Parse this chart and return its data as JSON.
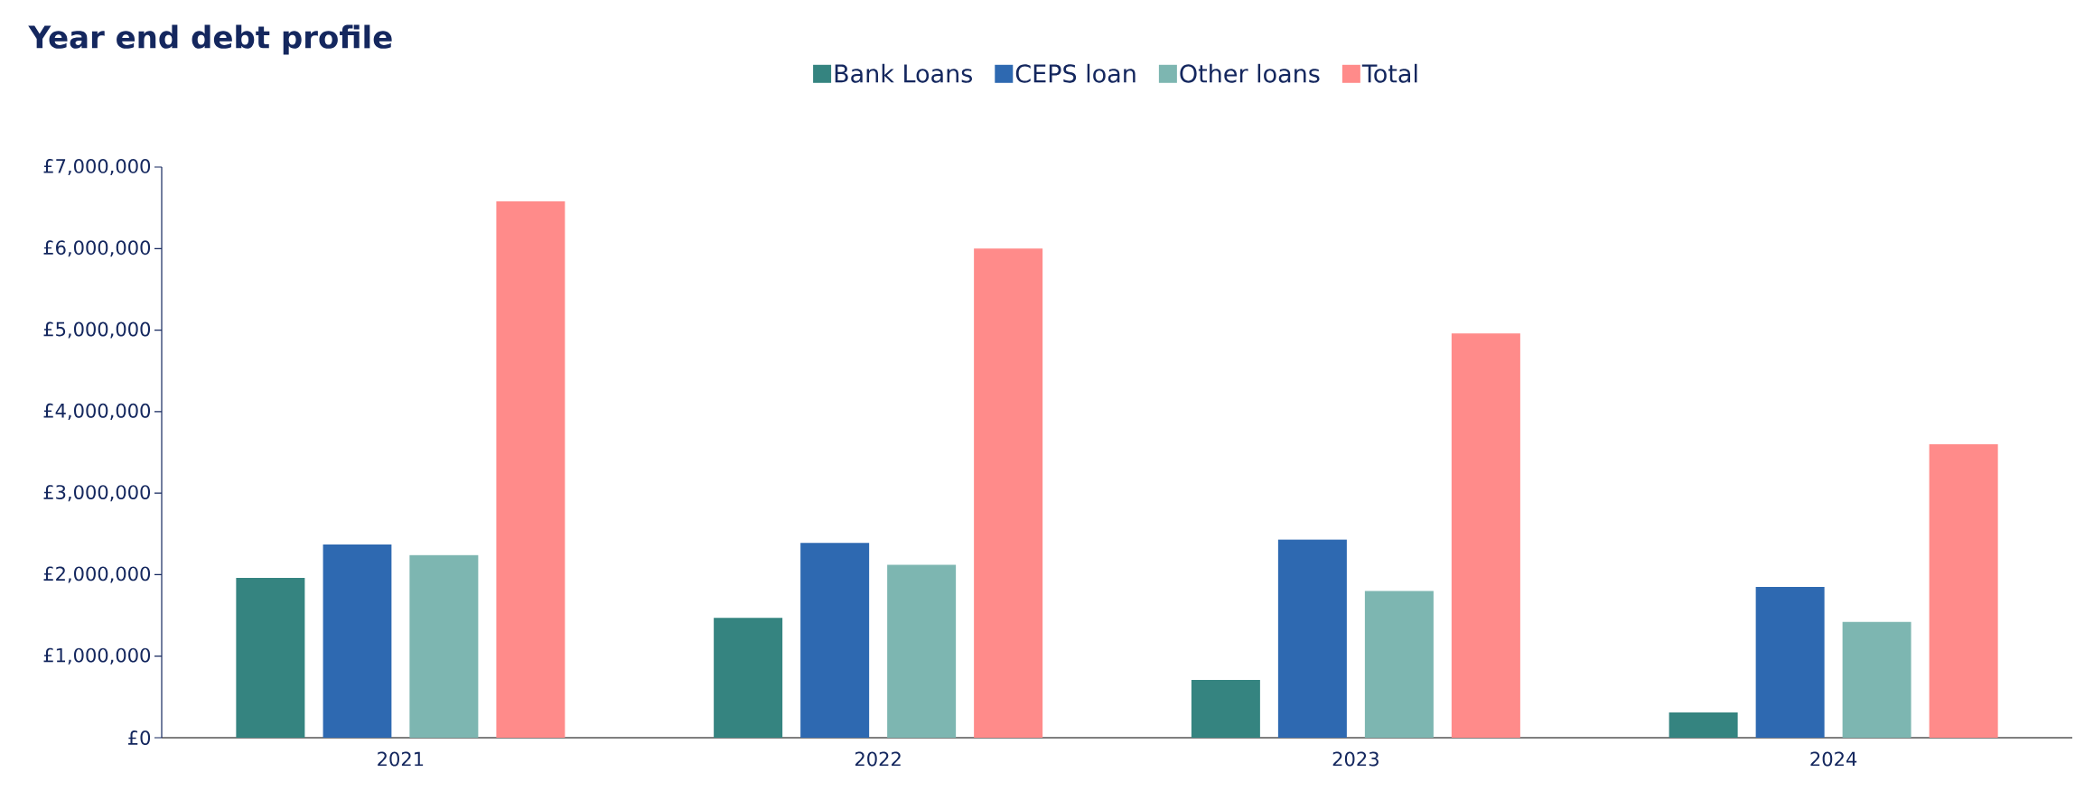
{
  "chart_data": {
    "type": "bar",
    "title": "Year end debt profile",
    "categories": [
      "2021",
      "2022",
      "2023",
      "2024"
    ],
    "series": [
      {
        "name": "Bank Loans",
        "color": "#358480",
        "values": [
          1960000,
          1470000,
          710000,
          310000
        ]
      },
      {
        "name": "CEPS loan",
        "color": "#2e69b1",
        "values": [
          2370000,
          2390000,
          2430000,
          1850000
        ]
      },
      {
        "name": "Other loans",
        "color": "#7db6b1",
        "values": [
          2240000,
          2120000,
          1800000,
          1420000
        ]
      },
      {
        "name": "Total",
        "color": "#ff8b8a",
        "values": [
          6580000,
          6000000,
          4960000,
          3600000
        ]
      }
    ],
    "ylim": [
      0,
      7000000
    ],
    "yticks": [
      {
        "value": 0,
        "label": "£0"
      },
      {
        "value": 1000000,
        "label": "£1,000,000"
      },
      {
        "value": 2000000,
        "label": "£2,000,000"
      },
      {
        "value": 3000000,
        "label": "£3,000,000"
      },
      {
        "value": 4000000,
        "label": "£4,000,000"
      },
      {
        "value": 5000000,
        "label": "£5,000,000"
      },
      {
        "value": 6000000,
        "label": "£6,000,000"
      },
      {
        "value": 7000000,
        "label": "£7,000,000"
      }
    ],
    "legend": "top",
    "grid": false
  }
}
